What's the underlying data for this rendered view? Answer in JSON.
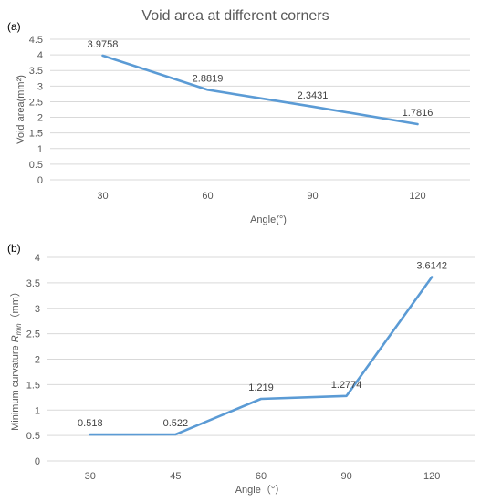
{
  "colors": {
    "series": "#5b9bd5",
    "grid": "#d9d9d9",
    "text": "#595959"
  },
  "chart_data": [
    {
      "type": "line",
      "panel_label": "(a)",
      "title": "Void area at different corners",
      "xlabel": "Angle(°)",
      "ylabel": "Void area(mm²)",
      "categories": [
        "30",
        "60",
        "90",
        "120"
      ],
      "series": [
        {
          "values": [
            3.9758,
            2.8819,
            2.3431,
            1.7816
          ]
        }
      ],
      "data_labels": [
        "3.9758",
        "2.8819",
        "2.3431",
        "1.7816"
      ],
      "ylim": [
        0,
        4.5
      ],
      "yticks": [
        "0",
        "0.5",
        "1",
        "1.5",
        "2",
        "2.5",
        "3",
        "3.5",
        "4",
        "4.5"
      ],
      "grid": true
    },
    {
      "type": "line",
      "panel_label": "(b)",
      "title": "",
      "xlabel": "Angle（°）",
      "ylabel_main": "Minimum curvature ",
      "ylabel_R": "R",
      "ylabel_sub": "min",
      "ylabel_unit": "（mm）",
      "categories": [
        "30",
        "45",
        "60",
        "90",
        "120"
      ],
      "series": [
        {
          "values": [
            0.518,
            0.522,
            1.219,
            1.2774,
            3.6142
          ]
        }
      ],
      "data_labels": [
        "0.518",
        "0.522",
        "1.219",
        "1.2774",
        "3.6142"
      ],
      "ylim": [
        0,
        4
      ],
      "yticks": [
        "0",
        "0.5",
        "1",
        "1.5",
        "2",
        "2.5",
        "3",
        "3.5",
        "4"
      ],
      "grid": true
    }
  ]
}
